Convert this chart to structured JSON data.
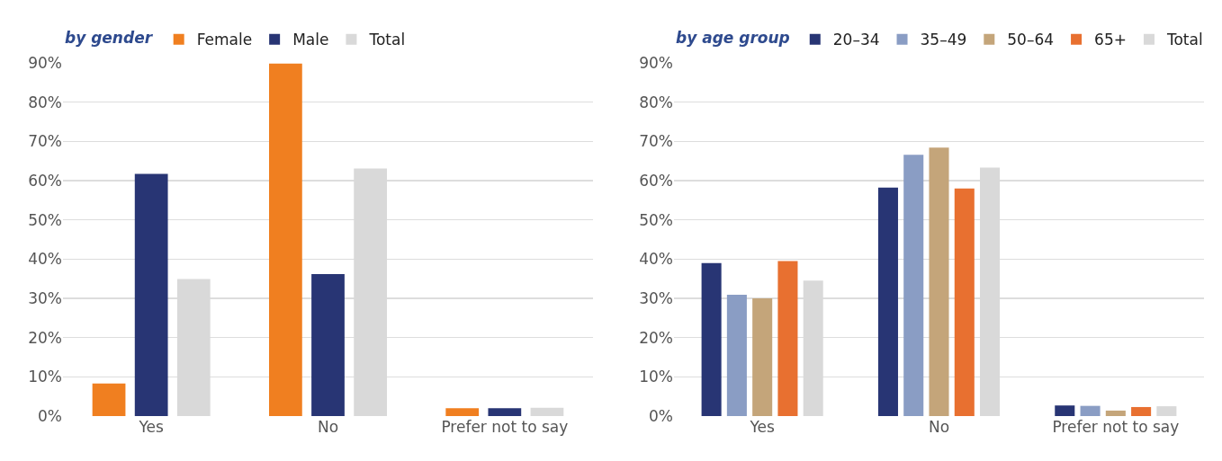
{
  "chart_data": [
    {
      "type": "bar",
      "legend_title": "by gender",
      "categories": [
        "Yes",
        "No",
        "Prefer not to say"
      ],
      "series": [
        {
          "name": "Female",
          "color": "#f07f20",
          "values": [
            8.3,
            89.8,
            2
          ]
        },
        {
          "name": "Male",
          "color": "#283574",
          "values": [
            61.7,
            36.2,
            2
          ]
        },
        {
          "name": "Total",
          "color": "#d9d9d9",
          "values": [
            34.9,
            63.1,
            2.1
          ]
        }
      ],
      "ylim": [
        0,
        90
      ],
      "yticks": [
        {
          "value": 0,
          "label": "0%"
        },
        {
          "value": 10,
          "label": "10%"
        },
        {
          "value": 20,
          "label": "20%"
        },
        {
          "value": 30,
          "label": "30%"
        },
        {
          "value": 40,
          "label": "40%"
        },
        {
          "value": 50,
          "label": "50%"
        },
        {
          "value": 60,
          "label": "60%"
        },
        {
          "value": 70,
          "label": "70%"
        },
        {
          "value": 80,
          "label": "80%"
        },
        {
          "value": 90,
          "label": "90%"
        }
      ],
      "grid": "y",
      "legend": "top"
    },
    {
      "type": "bar",
      "legend_title": "by age group",
      "categories": [
        "Yes",
        "No",
        "Prefer not to say"
      ],
      "series": [
        {
          "name": "20–34",
          "color": "#283574",
          "values": [
            39,
            58.2,
            2.7
          ]
        },
        {
          "name": "35–49",
          "color": "#8a9dc4",
          "values": [
            30.9,
            66.6,
            2.6
          ]
        },
        {
          "name": "50–64",
          "color": "#c4a57a",
          "values": [
            30,
            68.4,
            1.4
          ]
        },
        {
          "name": "65+",
          "color": "#e87030",
          "values": [
            39.5,
            58,
            2.3
          ]
        },
        {
          "name": "Total",
          "color": "#d9d9d9",
          "values": [
            34.5,
            63.3,
            2.5
          ]
        }
      ],
      "ylim": [
        0,
        90
      ],
      "yticks": [
        {
          "value": 0,
          "label": "0%"
        },
        {
          "value": 10,
          "label": "10%"
        },
        {
          "value": 20,
          "label": "20%"
        },
        {
          "value": 30,
          "label": "30%"
        },
        {
          "value": 40,
          "label": "40%"
        },
        {
          "value": 50,
          "label": "50%"
        },
        {
          "value": 60,
          "label": "60%"
        },
        {
          "value": 70,
          "label": "70%"
        },
        {
          "value": 80,
          "label": "80%"
        },
        {
          "value": 90,
          "label": "90%"
        }
      ],
      "grid": "y",
      "legend": "top"
    }
  ]
}
